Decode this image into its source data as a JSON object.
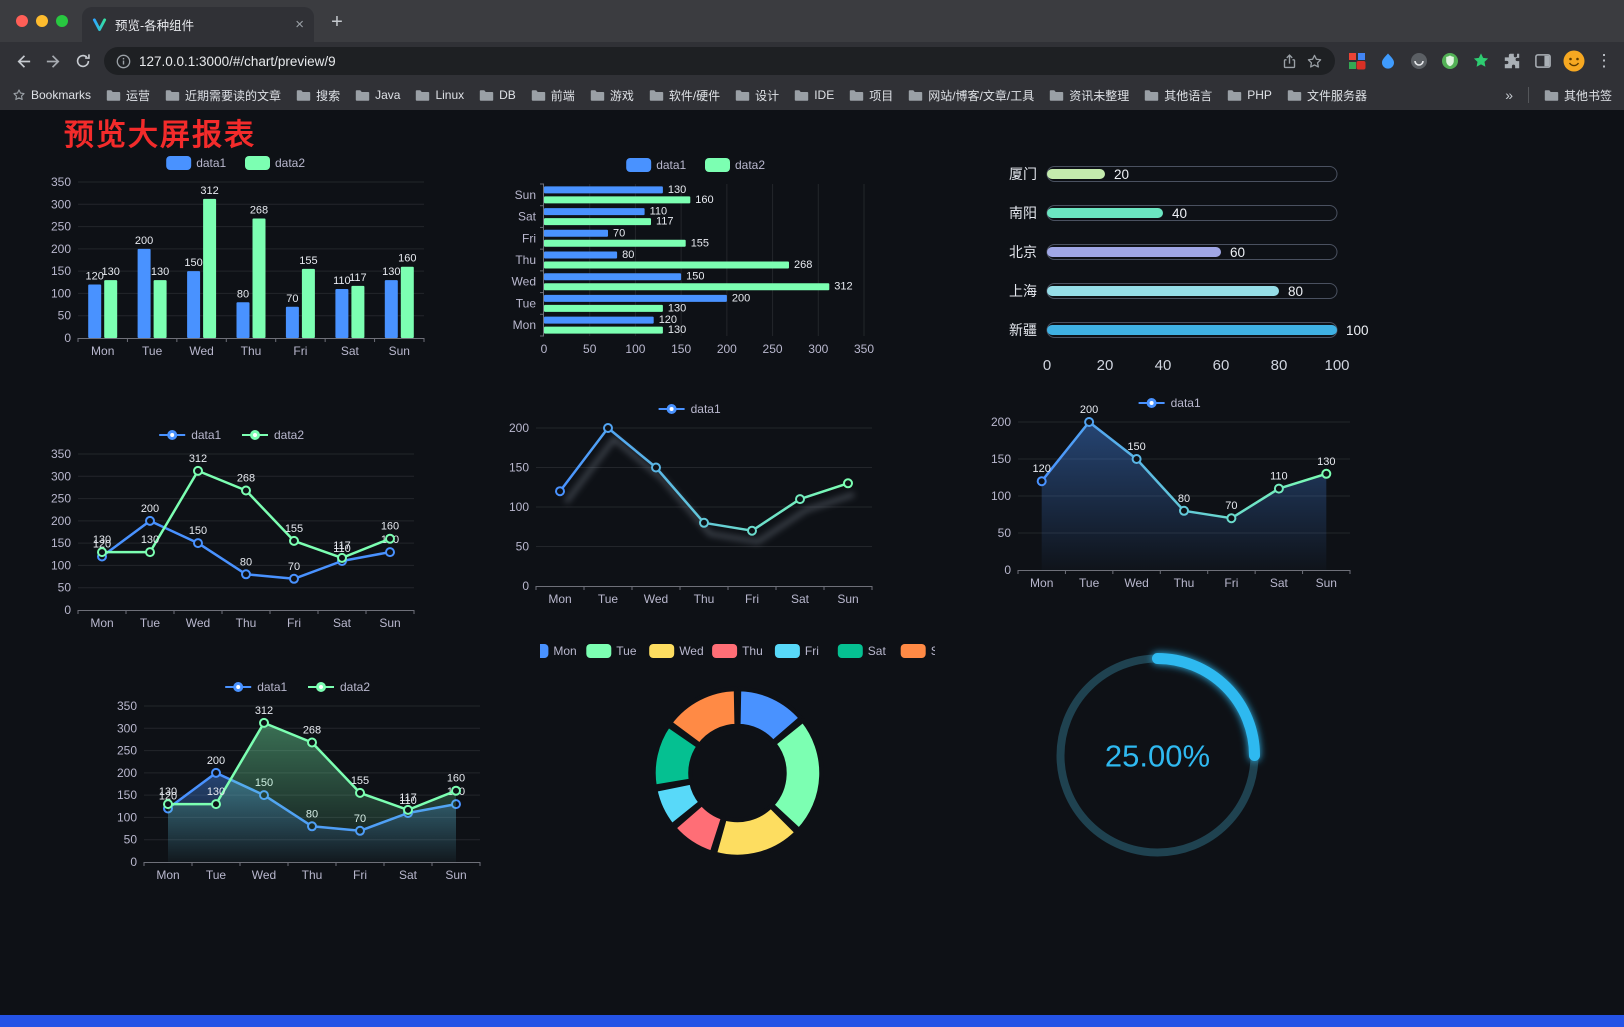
{
  "browser": {
    "tab": {
      "title": "预览-各种组件",
      "close_glyph": "×"
    },
    "new_tab_glyph": "+",
    "menu_glyph": "⋮",
    "url": "127.0.0.1:3000/#/chart/preview/9",
    "bookmarks_bar": {
      "first_item": "Bookmarks",
      "items": [
        "运营",
        "近期需要读的文章",
        "搜索",
        "Java",
        "Linux",
        "DB",
        "前端",
        "游戏",
        "软件/硬件",
        "设计",
        "IDE",
        "项目",
        "网站/博客/文章/工具",
        "资讯未整理",
        "其他语言",
        "PHP",
        "文件服务器"
      ],
      "overflow_chevron": "»",
      "other_bookmarks": "其他书签"
    }
  },
  "page": {
    "title": "预览大屏报表",
    "title_color": "#f32b2b",
    "background_color": "#0e1116",
    "bottom_strip_color": "#2453e6"
  },
  "chart_data": [
    {
      "type": "bar",
      "legend": [
        "data1",
        "data2"
      ],
      "categories": [
        "Mon",
        "Tue",
        "Wed",
        "Thu",
        "Fri",
        "Sat",
        "Sun"
      ],
      "series": [
        {
          "name": "data1",
          "color": "#4992ff",
          "values": [
            120,
            200,
            150,
            80,
            70,
            110,
            130
          ]
        },
        {
          "name": "data2",
          "color": "#7cffb2",
          "values": [
            130,
            130,
            312,
            268,
            155,
            117,
            160
          ]
        }
      ],
      "ylim": [
        0,
        350
      ],
      "ytick": 50,
      "show_labels": true,
      "legend_position": "top",
      "grid": true
    },
    {
      "type": "hbar",
      "legend": [
        "data1",
        "data2"
      ],
      "categories": [
        "Mon",
        "Tue",
        "Wed",
        "Thu",
        "Fri",
        "Sat",
        "Sun"
      ],
      "series": [
        {
          "name": "data1",
          "color": "#4992ff",
          "values": [
            120,
            200,
            150,
            80,
            70,
            110,
            130
          ]
        },
        {
          "name": "data2",
          "color": "#7cffb2",
          "values": [
            130,
            130,
            312,
            268,
            155,
            117,
            160
          ]
        }
      ],
      "xlim": [
        0,
        350
      ],
      "xtick": 50,
      "show_labels": true,
      "legend_position": "top",
      "grid": true
    },
    {
      "type": "capsule",
      "rows": [
        {
          "label": "厦门",
          "value": 20,
          "color": "#c4ebad"
        },
        {
          "label": "南阳",
          "value": 40,
          "color": "#6be6c1"
        },
        {
          "label": "北京",
          "value": 60,
          "color": "#a0a7e6"
        },
        {
          "label": "上海",
          "value": 80,
          "color": "#96dee8"
        },
        {
          "label": "新疆",
          "value": 100,
          "color": "#3fb1e3"
        }
      ],
      "xlim": [
        0,
        100
      ],
      "xticks": [
        0,
        20,
        40,
        60,
        80,
        100
      ]
    },
    {
      "type": "line",
      "legend": [
        "data1",
        "data2"
      ],
      "categories": [
        "Mon",
        "Tue",
        "Wed",
        "Thu",
        "Fri",
        "Sat",
        "Sun"
      ],
      "series": [
        {
          "name": "data1",
          "color": "#4992ff",
          "values": [
            120,
            200,
            150,
            80,
            70,
            110,
            130
          ]
        },
        {
          "name": "data2",
          "color": "#7cffb2",
          "values": [
            130,
            130,
            312,
            268,
            155,
            117,
            160
          ]
        }
      ],
      "ylim": [
        0,
        350
      ],
      "ytick": 50,
      "show_labels": true,
      "markers": true,
      "grid": true
    },
    {
      "type": "line",
      "legend": [
        "data1"
      ],
      "categories": [
        "Mon",
        "Tue",
        "Wed",
        "Thu",
        "Fri",
        "Sat",
        "Sun"
      ],
      "series": [
        {
          "name": "data1",
          "colors": [
            "#4992ff",
            "#7cffb2"
          ],
          "values": [
            120,
            200,
            150,
            80,
            70,
            110,
            130
          ]
        }
      ],
      "ylim": [
        0,
        200
      ],
      "ytick": 50,
      "show_labels": false,
      "markers": true,
      "shadow": true,
      "grid": true
    },
    {
      "type": "line",
      "legend": [
        "data1"
      ],
      "categories": [
        "Mon",
        "Tue",
        "Wed",
        "Thu",
        "Fri",
        "Sat",
        "Sun"
      ],
      "series": [
        {
          "name": "data1",
          "colors": [
            "#4992ff",
            "#7cffb2"
          ],
          "values": [
            120,
            200,
            150,
            80,
            70,
            110,
            130
          ]
        }
      ],
      "ylim": [
        0,
        200
      ],
      "ytick": 50,
      "show_labels": true,
      "markers": true,
      "area": true,
      "grid": true
    },
    {
      "type": "line",
      "legend": [
        "data1",
        "data2"
      ],
      "categories": [
        "Mon",
        "Tue",
        "Wed",
        "Thu",
        "Fri",
        "Sat",
        "Sun"
      ],
      "series": [
        {
          "name": "data1",
          "color": "#4992ff",
          "values": [
            120,
            200,
            150,
            80,
            70,
            110,
            130
          ]
        },
        {
          "name": "data2",
          "color": "#7cffb2",
          "values": [
            130,
            130,
            312,
            268,
            155,
            117,
            160
          ]
        }
      ],
      "ylim": [
        0,
        350
      ],
      "ytick": 50,
      "show_labels": true,
      "markers": true,
      "area": true,
      "grid": true
    },
    {
      "type": "donut",
      "legend": [
        "Mon",
        "Tue",
        "Wed",
        "Thu",
        "Fri",
        "Sat",
        "Sun"
      ],
      "slices": [
        {
          "name": "Mon",
          "value": 120,
          "color": "#4992ff"
        },
        {
          "name": "Tue",
          "value": 200,
          "color": "#7cffb2"
        },
        {
          "name": "Wed",
          "value": 150,
          "color": "#fddd60"
        },
        {
          "name": "Thu",
          "value": 80,
          "color": "#ff6e76"
        },
        {
          "name": "Fri",
          "value": 70,
          "color": "#58d9f9"
        },
        {
          "name": "Sat",
          "value": 110,
          "color": "#05c091"
        },
        {
          "name": "Sun",
          "value": 130,
          "color": "#ff8a45"
        }
      ]
    },
    {
      "type": "gauge",
      "percent": 25,
      "value_label": "25.00%",
      "color": "#2fb9f0",
      "track_color": "#1f4250"
    }
  ]
}
